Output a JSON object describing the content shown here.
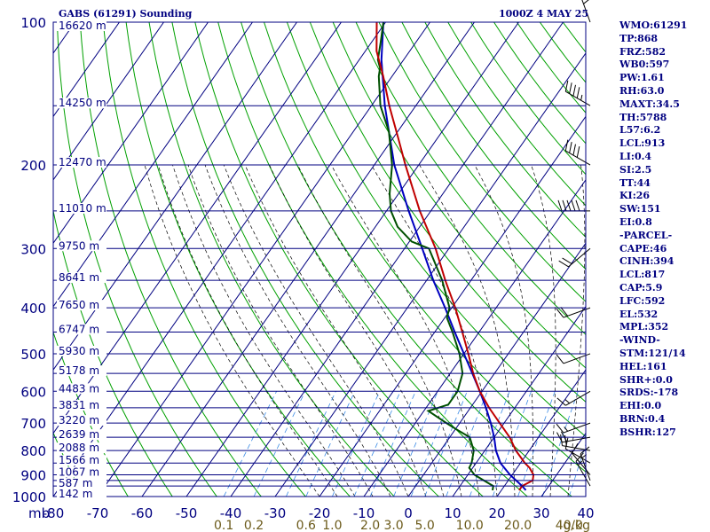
{
  "header": {
    "station": "GABS (61291) Sounding",
    "time": "1000Z  4 MAY 25"
  },
  "indices": [
    "WMO:61291",
    "TP:868",
    "FRZ:582",
    "WB0:597",
    "PW:1.61",
    "RH:63.0",
    "MAXT:34.5",
    "TH:5788",
    "L57:6.2",
    "LCL:913",
    "LI:0.4",
    "SI:2.5",
    "TT:44",
    "KI:26",
    "SW:151",
    "EI:0.8",
    "-PARCEL-",
    "CAPE:46",
    "CINH:394",
    "LCL:817",
    "CAP:5.9",
    "LFC:592",
    "EL:532",
    "MPL:352",
    "-WIND-",
    "STM:121/14",
    "HEL:161",
    "SHR+:0.0",
    "SRDS:-178",
    "EHI:0.0",
    "BRN:0.4",
    "BSHR:127"
  ],
  "colors": {
    "isobar": "#000080",
    "isotherm": "#000080",
    "dry_adiabat": "#00a000",
    "moist_adiabat": "#000000",
    "mixing_ratio": "#3c8ce6",
    "temperature": "#c00000",
    "dewpoint": "#005000",
    "parcel": "#0000c0",
    "axis_label": "#000080",
    "mixing_label": "#6b5a1a",
    "wind_barb": "#000000"
  },
  "chart_data": {
    "type": "skew-t",
    "pressure_levels": [
      {
        "p": 100,
        "label": "100"
      },
      {
        "p": 150,
        "label": ""
      },
      {
        "p": 200,
        "label": "200"
      },
      {
        "p": 250,
        "label": ""
      },
      {
        "p": 300,
        "label": "300"
      },
      {
        "p": 350,
        "label": ""
      },
      {
        "p": 400,
        "label": "400"
      },
      {
        "p": 450,
        "label": ""
      },
      {
        "p": 500,
        "label": "500"
      },
      {
        "p": 550,
        "label": ""
      },
      {
        "p": 600,
        "label": "600"
      },
      {
        "p": 650,
        "label": ""
      },
      {
        "p": 700,
        "label": "700"
      },
      {
        "p": 750,
        "label": ""
      },
      {
        "p": 800,
        "label": "800"
      },
      {
        "p": 850,
        "label": ""
      },
      {
        "p": 900,
        "label": "900"
      },
      {
        "p": 925,
        "label": ""
      },
      {
        "p": 950,
        "label": ""
      },
      {
        "p": 1000,
        "label": "1000"
      }
    ],
    "pressure_unit": "mb",
    "height_labels": [
      {
        "p": 100,
        "label": "16620 m"
      },
      {
        "p": 150,
        "label": "14250 m"
      },
      {
        "p": 200,
        "label": "12470 m"
      },
      {
        "p": 250,
        "label": "11010 m"
      },
      {
        "p": 300,
        "label": "9750 m"
      },
      {
        "p": 350,
        "label": "8641 m"
      },
      {
        "p": 400,
        "label": "7650 m"
      },
      {
        "p": 450,
        "label": "6747 m"
      },
      {
        "p": 500,
        "label": "5930 m"
      },
      {
        "p": 550,
        "label": "5178 m"
      },
      {
        "p": 600,
        "label": "4483 m"
      },
      {
        "p": 650,
        "label": "3831 m"
      },
      {
        "p": 700,
        "label": "3220 m"
      },
      {
        "p": 750,
        "label": "2639 m"
      },
      {
        "p": 800,
        "label": "2088 m"
      },
      {
        "p": 850,
        "label": "1566 m"
      },
      {
        "p": 900,
        "label": "1067 m"
      },
      {
        "p": 950,
        "label": "587 m"
      },
      {
        "p": 1000,
        "label": "142 m"
      }
    ],
    "temperature_ticks": [
      -80,
      -70,
      -60,
      -50,
      -40,
      -30,
      -20,
      -10,
      0,
      10,
      20,
      30,
      40
    ],
    "temperature_tick_labels": [
      "-80",
      "-70",
      "-60",
      "-50",
      "-40",
      "-30",
      "-20",
      "-10",
      "0",
      "10",
      "20",
      "30",
      "40"
    ],
    "mixing_ratio_labels": [
      {
        "w": 0.1,
        "label": "0.1"
      },
      {
        "w": 0.2,
        "label": "0.2"
      },
      {
        "w": 0.6,
        "label": "0.6"
      },
      {
        "w": 1.0,
        "label": "1.0"
      },
      {
        "w": 2.0,
        "label": "2.0"
      },
      {
        "w": 3.0,
        "label": "3.0"
      },
      {
        "w": 5.0,
        "label": "5.0"
      },
      {
        "w": 10.0,
        "label": "10.0"
      },
      {
        "w": 20.0,
        "label": "20.0"
      },
      {
        "w": 40.0,
        "label": "40.0"
      }
    ],
    "mixing_ratio_unit": "g/kg",
    "temperature_profile": [
      {
        "p": 970,
        "t": 24.0
      },
      {
        "p": 950,
        "t": 24.0
      },
      {
        "p": 925,
        "t": 25.5
      },
      {
        "p": 900,
        "t": 24.8
      },
      {
        "p": 870,
        "t": 22.8
      },
      {
        "p": 850,
        "t": 21.0
      },
      {
        "p": 800,
        "t": 17.0
      },
      {
        "p": 750,
        "t": 13.5
      },
      {
        "p": 700,
        "t": 9.0
      },
      {
        "p": 650,
        "t": 4.2
      },
      {
        "p": 600,
        "t": -0.5
      },
      {
        "p": 550,
        "t": -4.8
      },
      {
        "p": 500,
        "t": -9.0
      },
      {
        "p": 450,
        "t": -13.8
      },
      {
        "p": 400,
        "t": -19.2
      },
      {
        "p": 350,
        "t": -25.8
      },
      {
        "p": 300,
        "t": -33.0
      },
      {
        "p": 250,
        "t": -42.5
      },
      {
        "p": 200,
        "t": -53.0
      },
      {
        "p": 175,
        "t": -59.0
      },
      {
        "p": 150,
        "t": -66.0
      },
      {
        "p": 130,
        "t": -72.0
      },
      {
        "p": 115,
        "t": -77.5
      },
      {
        "p": 100,
        "t": -82.0
      }
    ],
    "dewpoint_profile": [
      {
        "p": 970,
        "t": 18.0
      },
      {
        "p": 950,
        "t": 17.5
      },
      {
        "p": 925,
        "t": 14.5
      },
      {
        "p": 900,
        "t": 11.5
      },
      {
        "p": 870,
        "t": 9.2
      },
      {
        "p": 850,
        "t": 9.0
      },
      {
        "p": 800,
        "t": 7.5
      },
      {
        "p": 750,
        "t": 4.5
      },
      {
        "p": 720,
        "t": 0.0
      },
      {
        "p": 700,
        "t": -3.0
      },
      {
        "p": 660,
        "t": -9.0
      },
      {
        "p": 640,
        "t": -5.5
      },
      {
        "p": 600,
        "t": -5.5
      },
      {
        "p": 550,
        "t": -7.2
      },
      {
        "p": 500,
        "t": -11.0
      },
      {
        "p": 450,
        "t": -16.0
      },
      {
        "p": 420,
        "t": -19.5
      },
      {
        "p": 400,
        "t": -20.5
      },
      {
        "p": 350,
        "t": -26.5
      },
      {
        "p": 300,
        "t": -34.5
      },
      {
        "p": 290,
        "t": -39.5
      },
      {
        "p": 270,
        "t": -45.0
      },
      {
        "p": 250,
        "t": -49.0
      },
      {
        "p": 230,
        "t": -52.0
      },
      {
        "p": 200,
        "t": -56.0
      },
      {
        "p": 170,
        "t": -62.0
      },
      {
        "p": 150,
        "t": -68.0
      },
      {
        "p": 130,
        "t": -73.0
      },
      {
        "p": 125,
        "t": -74.0
      },
      {
        "p": 120,
        "t": -75.8
      },
      {
        "p": 110,
        "t": -78.0
      },
      {
        "p": 100,
        "t": -80.5
      }
    ],
    "parcel_profile": [
      {
        "p": 970,
        "t": 25.5
      },
      {
        "p": 950,
        "t": 24.0
      },
      {
        "p": 900,
        "t": 19.5
      },
      {
        "p": 850,
        "t": 15.5
      },
      {
        "p": 800,
        "t": 12.5
      },
      {
        "p": 750,
        "t": 10.0
      },
      {
        "p": 700,
        "t": 7.0
      },
      {
        "p": 650,
        "t": 3.5
      },
      {
        "p": 600,
        "t": -0.5
      },
      {
        "p": 550,
        "t": -5.0
      },
      {
        "p": 500,
        "t": -10.0
      },
      {
        "p": 450,
        "t": -15.5
      },
      {
        "p": 400,
        "t": -21.5
      },
      {
        "p": 350,
        "t": -28.5
      },
      {
        "p": 300,
        "t": -36.0
      },
      {
        "p": 250,
        "t": -45.0
      },
      {
        "p": 200,
        "t": -55.5
      },
      {
        "p": 150,
        "t": -67.0
      },
      {
        "p": 120,
        "t": -75.0
      },
      {
        "p": 100,
        "t": -80.5
      }
    ],
    "wind_barbs": [
      {
        "p": 100,
        "dir": 340,
        "spd": 30
      },
      {
        "p": 150,
        "dir": 300,
        "spd": 45
      },
      {
        "p": 200,
        "dir": 300,
        "spd": 40
      },
      {
        "p": 250,
        "dir": 270,
        "spd": 50
      },
      {
        "p": 300,
        "dir": 230,
        "spd": 20
      },
      {
        "p": 400,
        "dir": 250,
        "spd": 20
      },
      {
        "p": 500,
        "dir": 250,
        "spd": 10
      },
      {
        "p": 600,
        "dir": 240,
        "spd": 15
      },
      {
        "p": 700,
        "dir": 250,
        "spd": 15
      },
      {
        "p": 750,
        "dir": 260,
        "spd": 20
      },
      {
        "p": 800,
        "dir": 280,
        "spd": 20
      },
      {
        "p": 850,
        "dir": 300,
        "spd": 10
      },
      {
        "p": 900,
        "dir": 320,
        "spd": 10
      },
      {
        "p": 925,
        "dir": 340,
        "spd": 15
      },
      {
        "p": 950,
        "dir": 330,
        "spd": 15
      }
    ]
  }
}
